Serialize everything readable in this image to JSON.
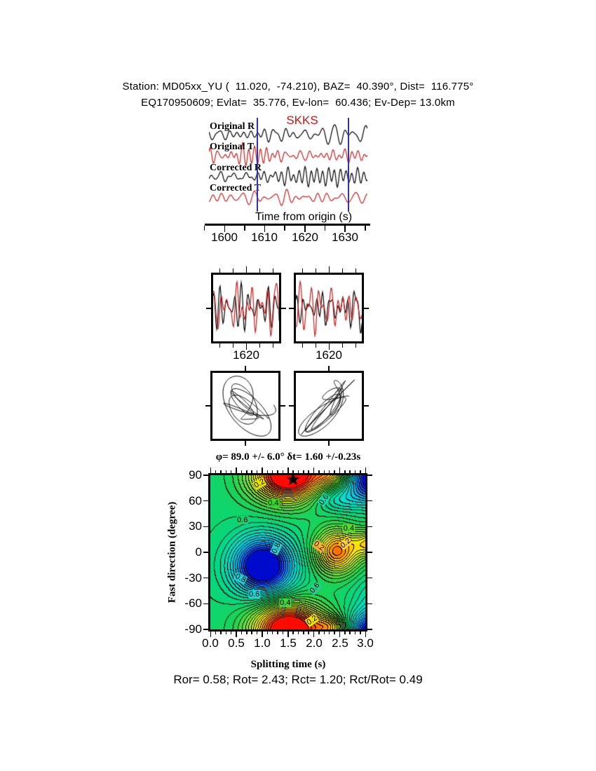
{
  "page": {
    "background": "#ffffff"
  },
  "header": {
    "line1": "Station: MD05xx_YU (  11.020,  -74.210), BAZ=  40.390°, Dist=  116.775°",
    "line2": "EQ170950609; Evlat=  35.776, Ev-lon=  60.436; Ev-Dep= 13.0km"
  },
  "seismogram_panel": {
    "phase_label": "SKKS",
    "phase_label_color": "#cc1414",
    "trace_labels": [
      "Original R",
      "Original T",
      "Corrected R",
      "Corrected T"
    ],
    "trace_colors": [
      "#000000",
      "#c22020",
      "#000000",
      "#c22020"
    ],
    "window_color": "#3232aa",
    "window_times_s": [
      1608.2,
      1630.8
    ],
    "axis_label": "Time from origin (s)",
    "ticks": [
      "1600",
      "1610",
      "1620",
      "1630"
    ],
    "tick_values": [
      1600,
      1610,
      1620,
      1630
    ]
  },
  "compare_panels": {
    "left_tick": "1620",
    "right_tick": "1620",
    "trace_colors": [
      "#000000",
      "#c22020"
    ]
  },
  "chart_data": {
    "type": "heatmap",
    "title": "φ= 89.0 +/- 6.0° δt= 1.60 +/-0.23s",
    "xlabel": "Splitting time (s)",
    "ylabel": "Fast direction (degree)",
    "xlim": [
      0.0,
      3.0
    ],
    "ylim": [
      -90,
      90
    ],
    "xticks": [
      "0.0",
      "0.5",
      "1.0",
      "1.5",
      "2.0",
      "2.5",
      "3.0"
    ],
    "xtick_values": [
      0.0,
      0.5,
      1.0,
      1.5,
      2.0,
      2.5,
      3.0
    ],
    "yticks": [
      "90",
      "60",
      "30",
      "0",
      "-30",
      "-60",
      "-90"
    ],
    "ytick_values": [
      90,
      60,
      30,
      0,
      -30,
      -60,
      -90
    ],
    "grid": false,
    "best_solution": {
      "fast_direction_deg": 89.0,
      "fast_direction_err_deg": 6.0,
      "split_time_s": 1.6,
      "split_time_err_s": 0.23,
      "marker": "black-star"
    },
    "contour_interval": 0.0333,
    "labeled_levels": [
      0.2,
      0.4,
      0.6,
      0.8
    ],
    "contour_labels": [
      {
        "text": "0.2",
        "t": 0.95,
        "p": 80,
        "rot": -30,
        "bg": "#e8e400"
      },
      {
        "text": "0.4",
        "t": 1.22,
        "p": 57,
        "rot": 0,
        "bg": "#35d62a"
      },
      {
        "text": "0.6",
        "t": 0.62,
        "p": 38,
        "rot": 0,
        "bg": "#1fd06a"
      },
      {
        "text": "0.6",
        "t": 2.2,
        "p": 61,
        "rot": -55,
        "bg": "#1fd6a8"
      },
      {
        "text": "0.4",
        "t": 2.68,
        "p": 28,
        "rot": 0,
        "bg": "#59dc28"
      },
      {
        "text": "0.2",
        "t": 2.62,
        "p": 11,
        "rot": -40,
        "bg": "#ffcf40"
      },
      {
        "text": "0.2",
        "t": 2.1,
        "p": 7,
        "rot": 35,
        "bg": "#ffb428"
      },
      {
        "text": "0.8",
        "t": 1.27,
        "p": 5,
        "rot": -65,
        "bg": "#22cfd4"
      },
      {
        "text": "0.8",
        "t": 0.58,
        "p": -30,
        "rot": 28,
        "bg": "#22cfd4"
      },
      {
        "text": "0.6",
        "t": 0.85,
        "p": -49,
        "rot": 0,
        "bg": "#1ed4d4"
      },
      {
        "text": "0.4",
        "t": 1.45,
        "p": -59,
        "rot": 0,
        "bg": "#38d838"
      },
      {
        "text": "0.6",
        "t": 2.02,
        "p": -42,
        "rot": -50,
        "bg": "#23d48e"
      },
      {
        "text": "0.2",
        "t": 1.97,
        "p": -79,
        "rot": -35,
        "bg": "#eee200"
      }
    ],
    "colormap_stops": [
      [
        0.0,
        255,
        0,
        0
      ],
      [
        0.07,
        255,
        60,
        0
      ],
      [
        0.17,
        255,
        165,
        0
      ],
      [
        0.26,
        255,
        240,
        0
      ],
      [
        0.36,
        160,
        232,
        40
      ],
      [
        0.5,
        30,
        210,
        80
      ],
      [
        0.62,
        0,
        216,
        140
      ],
      [
        0.72,
        0,
        224,
        210
      ],
      [
        0.82,
        0,
        185,
        250
      ],
      [
        0.9,
        30,
        90,
        255
      ],
      [
        0.97,
        0,
        20,
        220
      ],
      [
        1.0,
        0,
        0,
        190
      ]
    ],
    "surface_model": {
      "base": 0.56,
      "bumps": [
        {
          "t": 1.52,
          "p": 90,
          "a": -0.68,
          "wt": 0.7,
          "wp": 30
        },
        {
          "t": 1.02,
          "p": -16,
          "a": 0.56,
          "wt": 0.58,
          "wp": 33
        },
        {
          "t": 2.45,
          "p": 1,
          "a": -0.44,
          "wt": 0.42,
          "wp": 26
        },
        {
          "t": 3.2,
          "p": 86,
          "a": 0.52,
          "wt": 0.5,
          "wp": 26
        },
        {
          "t": 2.45,
          "p": 62,
          "a": 0.15,
          "wt": 0.5,
          "wp": 15
        },
        {
          "t": 2.35,
          "p": -88,
          "a": -0.22,
          "wt": 0.3,
          "wp": 13
        },
        {
          "t": 3.15,
          "p": 10,
          "a": -0.33,
          "wt": 0.35,
          "wp": 16
        },
        {
          "t": 3.2,
          "p": -48,
          "a": 0.1,
          "wt": 0.4,
          "wp": 22
        }
      ]
    }
  },
  "footer": {
    "stats": "Ror= 0.58; Rot= 2.43; Rct= 1.20; Rct/Rot= 0.49"
  }
}
